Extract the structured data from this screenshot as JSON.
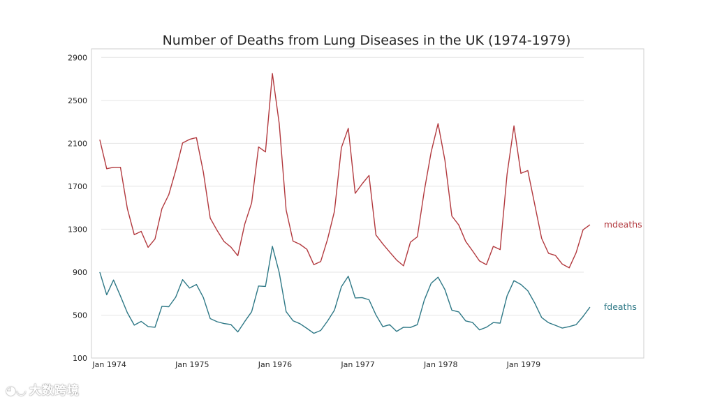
{
  "chart_data": {
    "type": "line",
    "title": "Number of Deaths from Lung Diseases in the UK (1974-1979)",
    "xlabel": "",
    "ylabel": "",
    "ylim": [
      100,
      2980
    ],
    "yticks": [
      100,
      500,
      900,
      1300,
      1700,
      2100,
      2500,
      2900
    ],
    "ytick_labels": [
      "100",
      "500",
      "900",
      "1300",
      "1700",
      "2100",
      "2500",
      "2900"
    ],
    "xlim": [
      -1.2,
      78.8
    ],
    "xticks": [
      {
        "index": 2,
        "label": "Jan 1974"
      },
      {
        "index": 14,
        "label": "Jan 1975"
      },
      {
        "index": 26,
        "label": "Jan 1976"
      },
      {
        "index": 38,
        "label": "Jan 1977"
      },
      {
        "index": 50,
        "label": "Jan 1978"
      },
      {
        "index": 62,
        "label": "Jan 1979"
      }
    ],
    "grid": true,
    "series": [
      {
        "name": "mdeaths",
        "label": "mdeaths",
        "color": "#b2393e",
        "values": [
          2134,
          1863,
          1877,
          1877,
          1492,
          1249,
          1280,
          1131,
          1209,
          1492,
          1621,
          1846,
          2103,
          2137,
          2153,
          1833,
          1403,
          1288,
          1186,
          1133,
          1053,
          1347,
          1545,
          2066,
          2020,
          2750,
          2283,
          1479,
          1189,
          1160,
          1113,
          970,
          999,
          1208,
          1467,
          2059,
          2240,
          1634,
          1722,
          1801,
          1246,
          1162,
          1087,
          1013,
          959,
          1179,
          1229,
          1655,
          2019,
          2284,
          1942,
          1423,
          1340,
          1187,
          1098,
          1004,
          970,
          1140,
          1110,
          1812,
          2263,
          1820,
          1846,
          1531,
          1215,
          1075,
          1056,
          975,
          940,
          1081,
          1294,
          1341
        ]
      },
      {
        "name": "fdeaths",
        "label": "fdeaths",
        "color": "#2e7886",
        "values": [
          901,
          689,
          827,
          677,
          522,
          406,
          441,
          393,
          387,
          582,
          578,
          666,
          830,
          752,
          785,
          664,
          467,
          438,
          421,
          412,
          343,
          440,
          531,
          771,
          767,
          1141,
          896,
          532,
          447,
          420,
          376,
          330,
          357,
          445,
          546,
          764,
          862,
          660,
          663,
          643,
          502,
          392,
          411,
          348,
          387,
          385,
          411,
          638,
          796,
          853,
          737,
          546,
          530,
          446,
          431,
          362,
          387,
          430,
          425,
          679,
          821,
          785,
          727,
          612,
          478,
          429,
          405,
          379,
          393,
          411,
          487,
          574
        ]
      }
    ]
  },
  "watermark": {
    "text": "大数跨境"
  }
}
